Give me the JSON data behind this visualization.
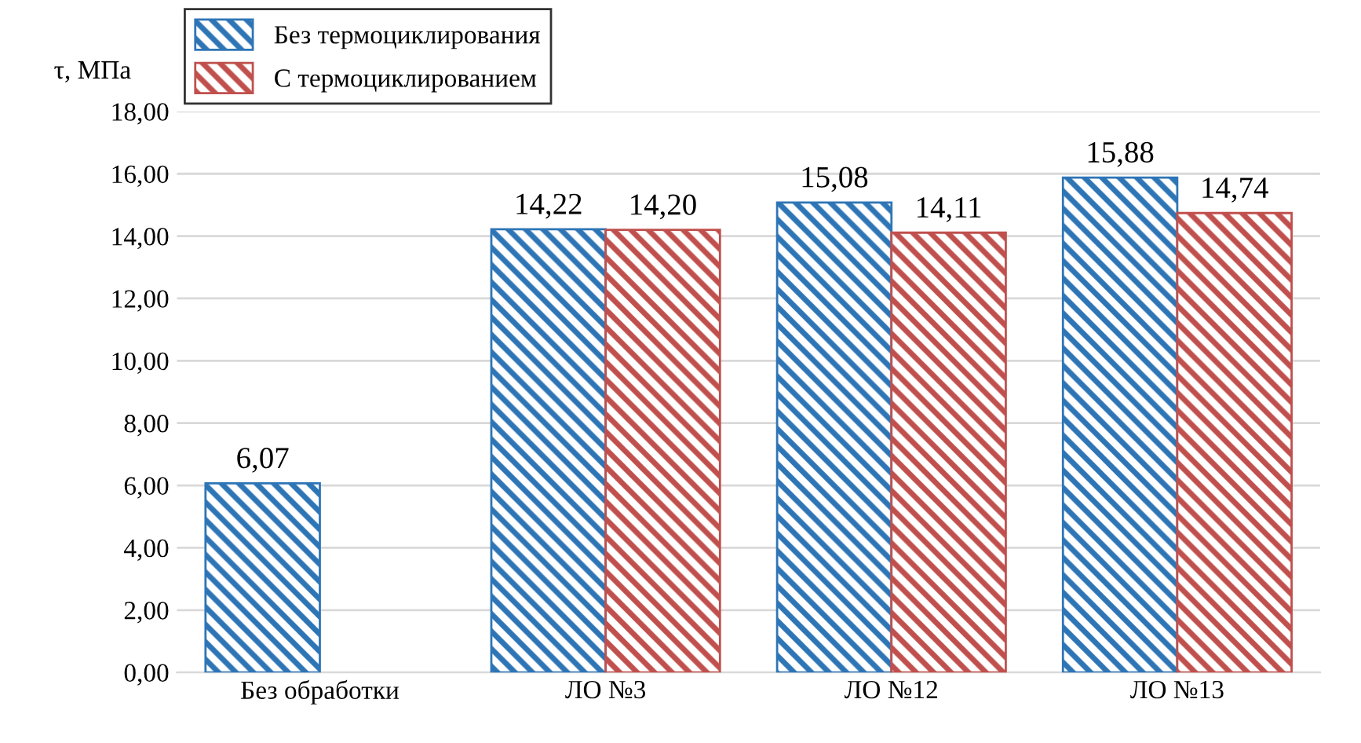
{
  "chart_data": {
    "type": "bar",
    "ylabel": "τ, МПа",
    "categories": [
      "Без обработки",
      "ЛО №3",
      "ЛО №12",
      "ЛО №13"
    ],
    "series": [
      {
        "name": "Без термоциклирования",
        "color": "#2e75b6",
        "values": [
          6.07,
          14.22,
          15.08,
          15.88
        ],
        "value_labels": [
          "6,07",
          "14,22",
          "15,08",
          "15,88"
        ]
      },
      {
        "name": "С термоциклированием",
        "color": "#c0504d",
        "values": [
          null,
          14.2,
          14.11,
          14.74
        ],
        "value_labels": [
          null,
          "14,20",
          "14,11",
          "14,74"
        ]
      }
    ],
    "ylim": [
      0,
      18
    ],
    "yticks": [
      {
        "value": 0,
        "label": "0,00"
      },
      {
        "value": 2,
        "label": "2,00"
      },
      {
        "value": 4,
        "label": "4,00"
      },
      {
        "value": 6,
        "label": "6,00"
      },
      {
        "value": 8,
        "label": "8,00"
      },
      {
        "value": 10,
        "label": "10,00"
      },
      {
        "value": 12,
        "label": "12,00"
      },
      {
        "value": 14,
        "label": "14,00"
      },
      {
        "value": 16,
        "label": "16,00"
      },
      {
        "value": 18,
        "label": "18,00"
      }
    ],
    "grid": "y",
    "legend": "top left"
  }
}
